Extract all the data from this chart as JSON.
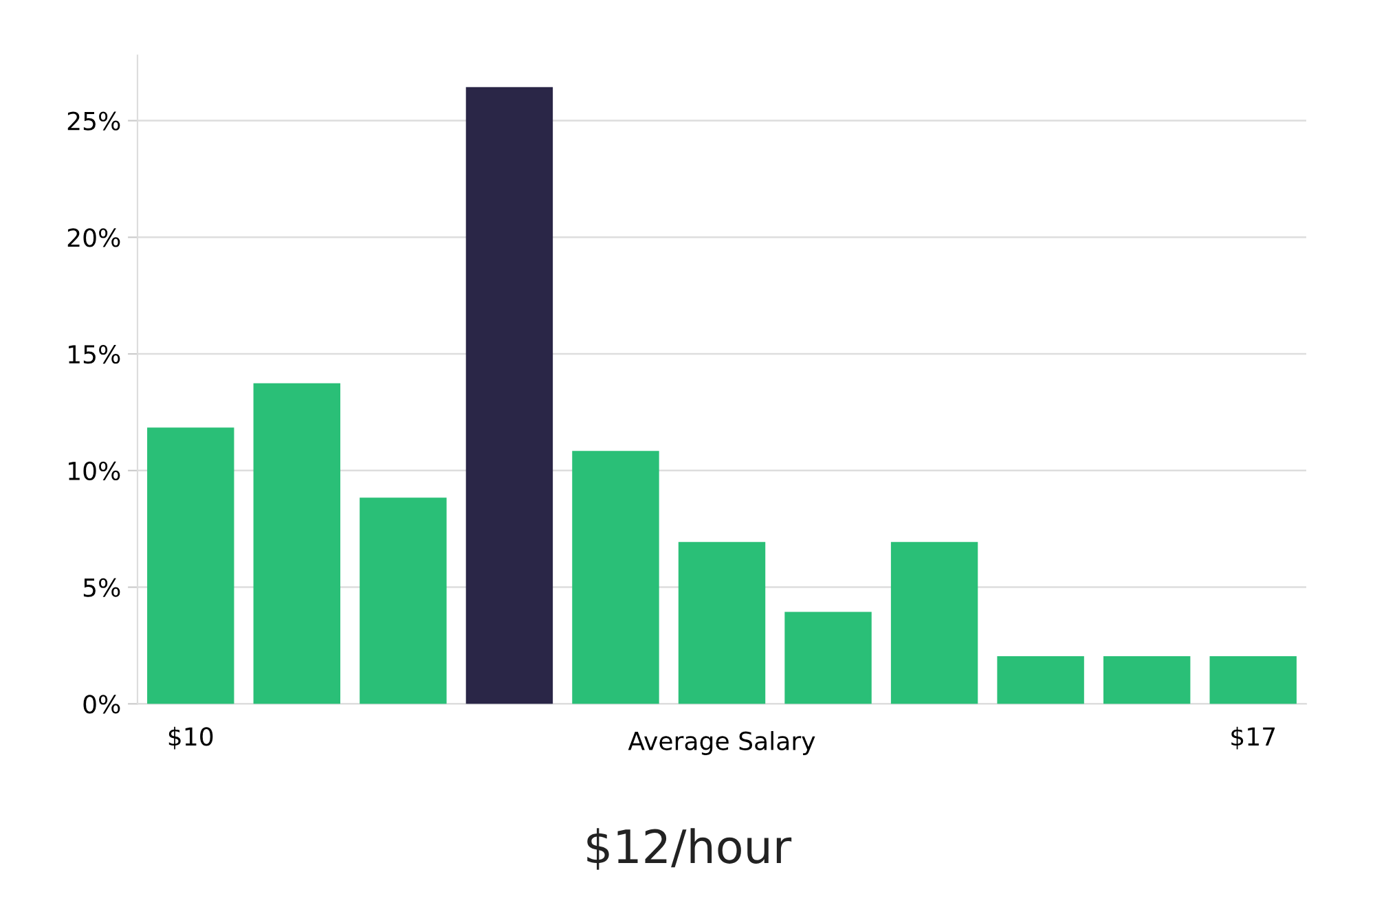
{
  "chart_data": {
    "type": "bar",
    "categories": [
      "$10",
      null,
      null,
      null,
      null,
      null,
      null,
      null,
      null,
      null,
      "$17"
    ],
    "values": [
      11.8,
      13.7,
      8.8,
      26.4,
      10.8,
      6.9,
      3.9,
      6.9,
      2.0,
      2.0,
      2.0
    ],
    "colors": [
      "#2abf77",
      "#2abf77",
      "#2abf77",
      "#2a2647",
      "#2abf77",
      "#2abf77",
      "#2abf77",
      "#2abf77",
      "#2abf77",
      "#2abf77",
      "#2abf77"
    ],
    "xlabel": "Average Salary",
    "ylim": [
      0,
      27.8
    ],
    "yticks": [
      {
        "value": 0,
        "label": "0%"
      },
      {
        "value": 5,
        "label": "5%"
      },
      {
        "value": 10,
        "label": "10%"
      },
      {
        "value": 15,
        "label": "15%"
      },
      {
        "value": 20,
        "label": "20%"
      },
      {
        "value": 25,
        "label": "25%"
      }
    ],
    "grid": "y",
    "legend": false,
    "annotations": [
      "$12/hour"
    ]
  }
}
